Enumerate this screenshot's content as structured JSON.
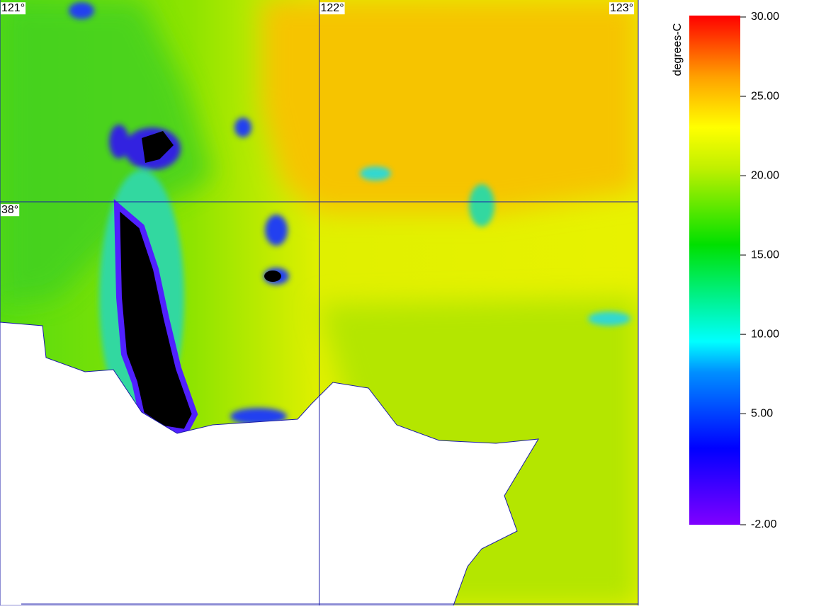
{
  "map": {
    "lon_axis": {
      "lim": [
        121,
        123
      ],
      "ticks": [
        {
          "value": 121,
          "label": "121°"
        },
        {
          "value": 122,
          "label": "122°"
        },
        {
          "value": 123,
          "label": "123°"
        }
      ]
    },
    "lat_axis": {
      "lim": [
        37.0,
        38.5
      ],
      "ticks": [
        {
          "value": 38,
          "label": "38°"
        }
      ]
    }
  },
  "colorbar": {
    "title": "degrees-C",
    "lim": [
      -2,
      30
    ],
    "ticks": [
      {
        "value": 30,
        "label": "30.00"
      },
      {
        "value": 25,
        "label": "25.00"
      },
      {
        "value": 20,
        "label": "20.00"
      },
      {
        "value": 15,
        "label": "15.00"
      },
      {
        "value": 10,
        "label": "10.00"
      },
      {
        "value": 5,
        "label": "5.00"
      },
      {
        "value": -2,
        "label": "-2.00"
      }
    ]
  }
}
